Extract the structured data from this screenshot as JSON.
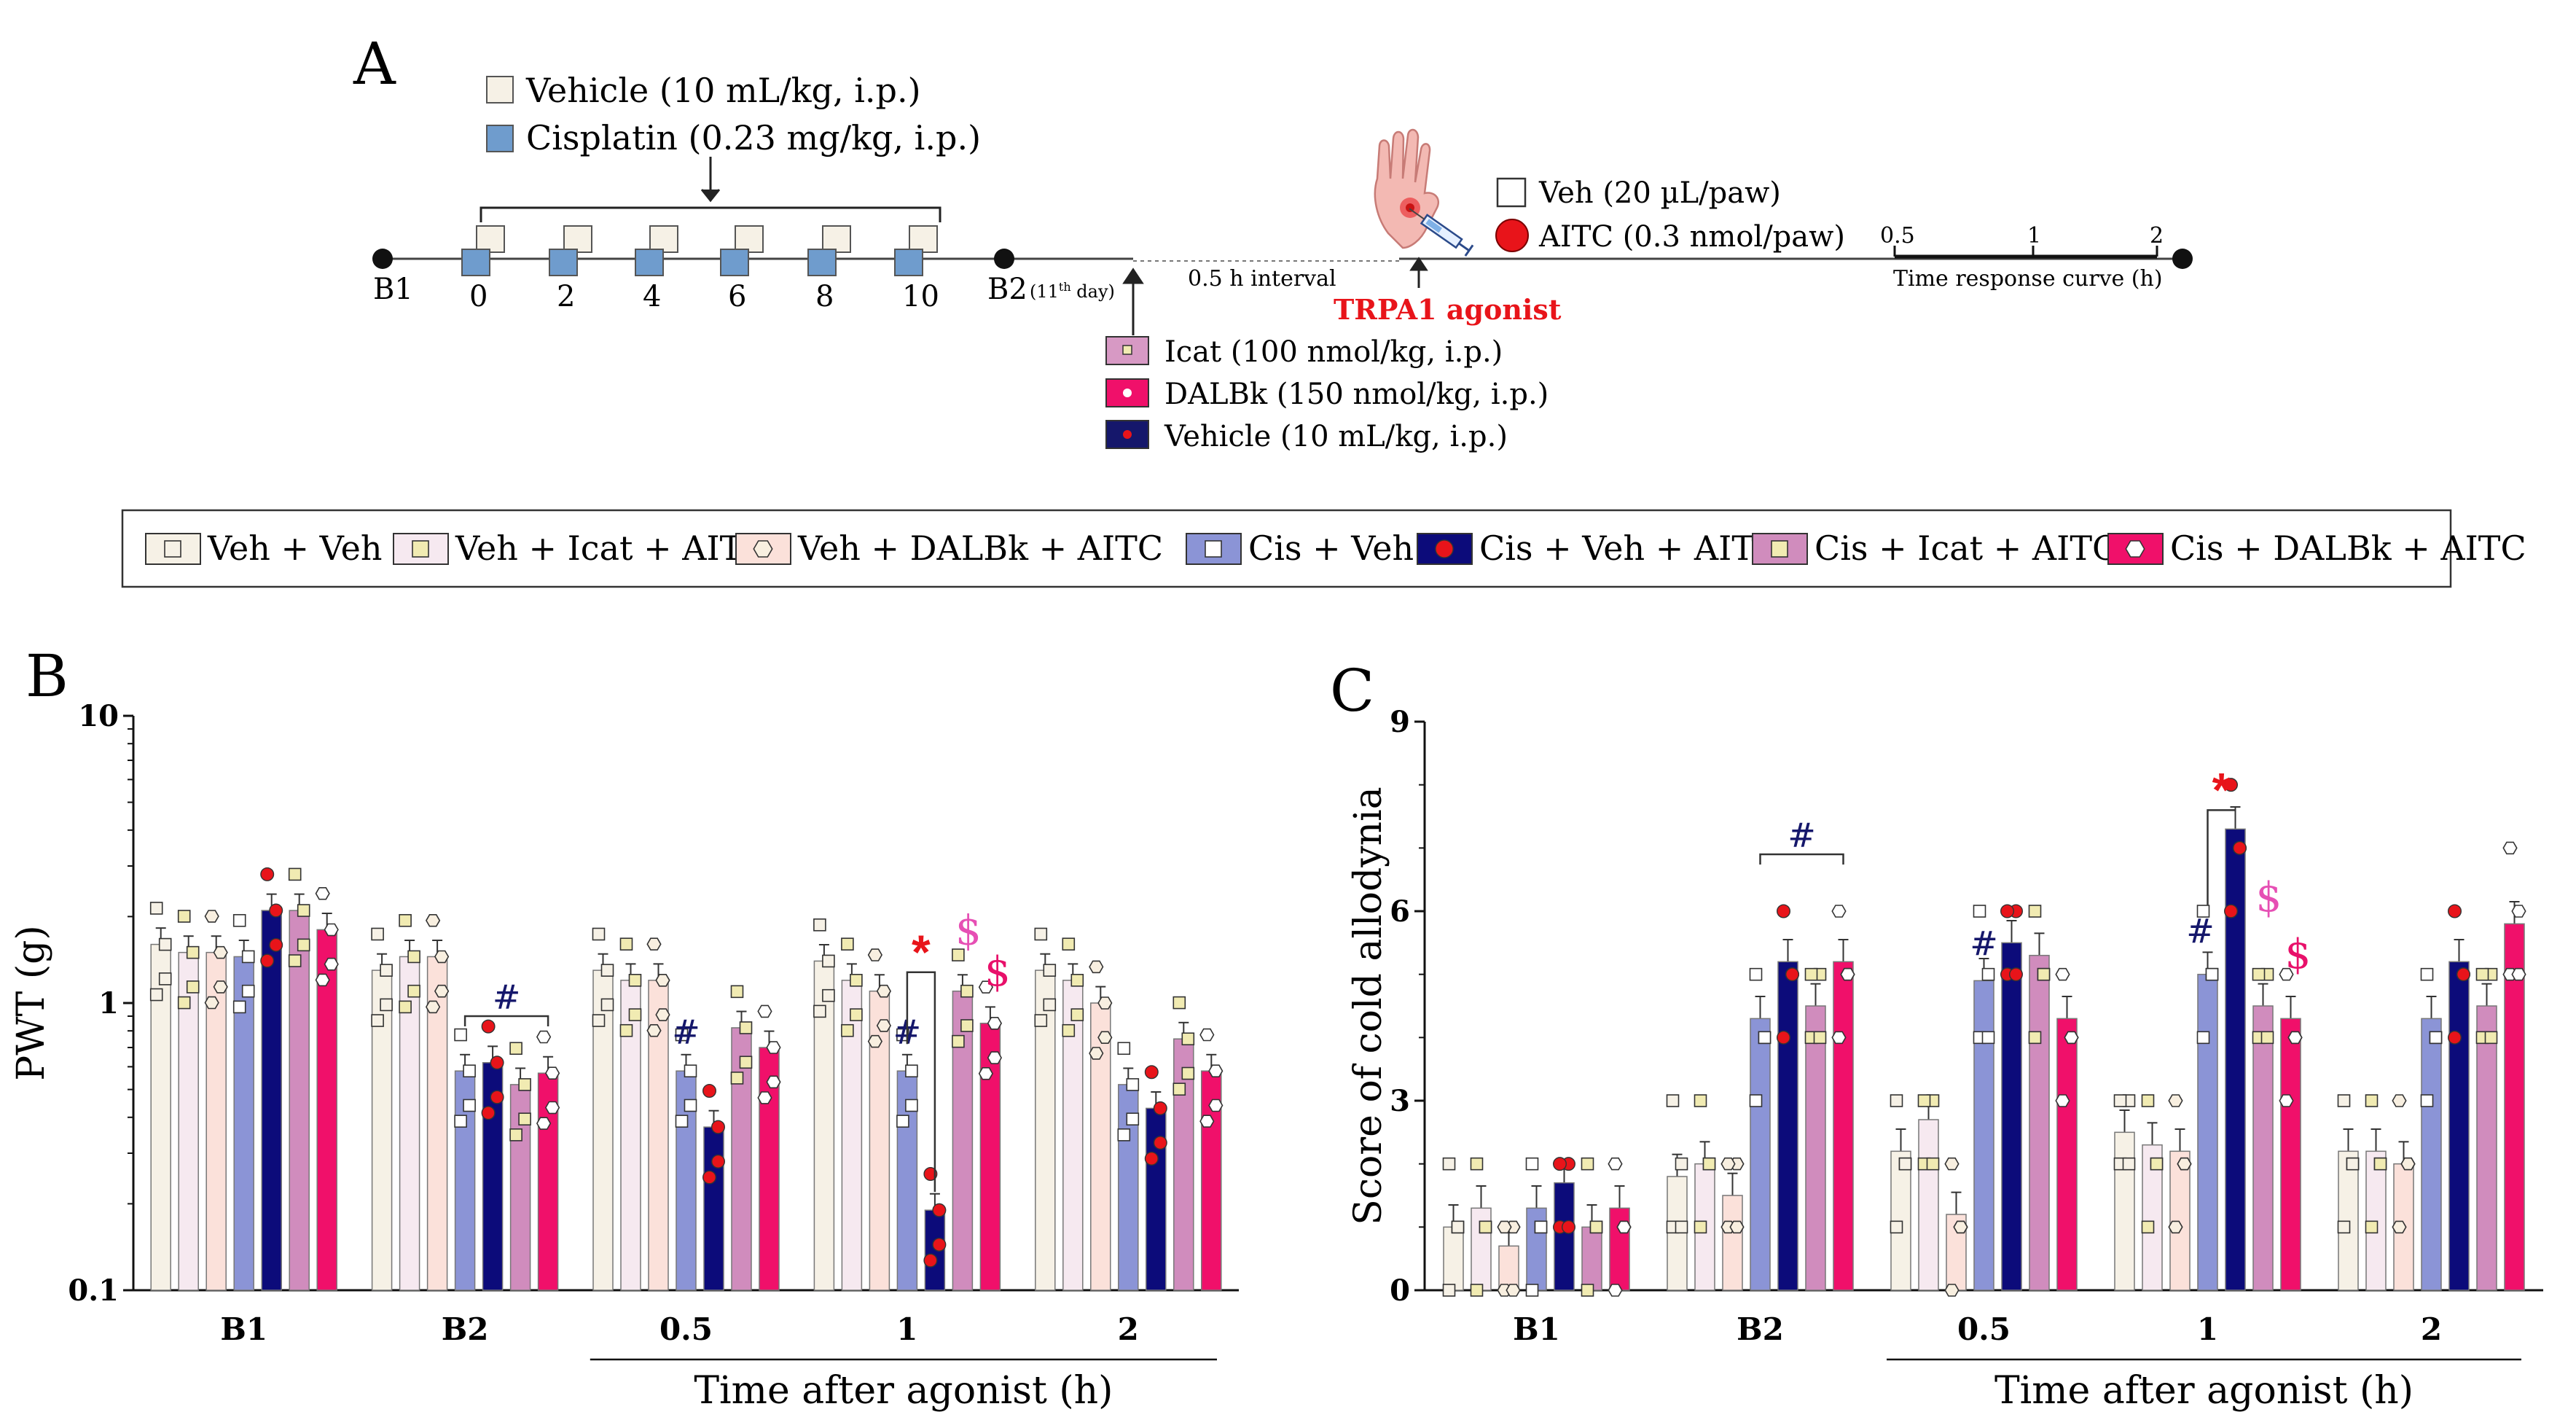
{
  "panel_a": {
    "letter": "A",
    "vehicle_label": "Vehicle (10 mL/kg, i.p.)",
    "cisplatin_label": "Cisplatin (0.23 mg/kg, i.p.)",
    "baseline1": "B1",
    "baseline2": "B2",
    "baseline2_note_prefix": "(11",
    "baseline2_note_sup": "th",
    "baseline2_note_suffix": " day)",
    "days": [
      "0",
      "2",
      "4",
      "6",
      "8",
      "10"
    ],
    "interval_label": "0.5 h interval",
    "agonist_label": "TRPA1 agonist",
    "treatments": [
      "Icat (100 nmol/kg, i.p.)",
      "DALBk (150 nmol/kg, i.p.)",
      "Vehicle (10 mL/kg, i.p.)"
    ],
    "paw_veh_label": "Veh (20 µL/paw)",
    "paw_aitc_label": "AITC (0.3 nmol/paw)",
    "time_ticks": [
      "0.5",
      "1",
      "2"
    ],
    "time_curve_label": "Time response curve (h)",
    "colors": {
      "vehicle": "#f6f1e6",
      "cisplatin": "#6f9ccd",
      "icat": "#d799c4",
      "dalbk": "#f0106a",
      "veh_ip": "#15176b",
      "aitc": "#e8141a",
      "agonist_text": "#e8141a"
    }
  },
  "legend": {
    "items": [
      {
        "label": "Veh + Veh",
        "fill": "#f6f1e6",
        "marker": "square",
        "marker_fill": "#f6f1e6"
      },
      {
        "label": "Veh + Icat + AITC",
        "fill": "#f6e9f0",
        "marker": "square",
        "marker_fill": "#f1ebb2"
      },
      {
        "label": "Veh + DALBk + AITC",
        "fill": "#fbe1da",
        "marker": "hexagon",
        "marker_fill": "#f8efe0"
      },
      {
        "label": "Cis + Veh",
        "fill": "#8b94d6",
        "marker": "square",
        "marker_fill": "#ffffff"
      },
      {
        "label": "Cis + Veh + AITC",
        "fill": "#0c0b7a",
        "marker": "circle",
        "marker_fill": "#e8141a"
      },
      {
        "label": "Cis + Icat + AITC",
        "fill": "#d08cbd",
        "marker": "square",
        "marker_fill": "#f1ebb2"
      },
      {
        "label": "Cis + DALBk + AITC",
        "fill": "#f0106a",
        "marker": "hexagon",
        "marker_fill": "#ffffff"
      }
    ]
  },
  "chart_data": [
    {
      "type": "bar",
      "panel": "B",
      "scale": "log",
      "ylabel": "PWT (g)",
      "ylim": [
        0.1,
        10
      ],
      "yticks": [
        "0.1",
        "1",
        "10"
      ],
      "categories": [
        "B1",
        "B2",
        "0.5",
        "1",
        "2"
      ],
      "xlabel": "Time after agonist (h)",
      "series": [
        {
          "name": "Veh + Veh",
          "values": [
            1.6,
            1.3,
            1.3,
            1.4,
            1.3
          ]
        },
        {
          "name": "Veh + Icat + AITC",
          "values": [
            1.5,
            1.45,
            1.2,
            1.2,
            1.2
          ]
        },
        {
          "name": "Veh + DALBk + AITC",
          "values": [
            1.5,
            1.45,
            1.2,
            1.1,
            1.0
          ]
        },
        {
          "name": "Cis + Veh",
          "values": [
            1.45,
            0.58,
            0.58,
            0.58,
            0.52
          ]
        },
        {
          "name": "Cis + Veh + AITC",
          "values": [
            2.1,
            0.62,
            0.37,
            0.19,
            0.43
          ]
        },
        {
          "name": "Cis + Icat + AITC",
          "values": [
            2.1,
            0.52,
            0.82,
            1.1,
            0.75
          ]
        },
        {
          "name": "Cis + DALBk + AITC",
          "values": [
            1.8,
            0.57,
            0.7,
            0.85,
            0.58
          ]
        }
      ],
      "annotations": [
        {
          "symbol": "#",
          "group": "B2",
          "color": "#15176b"
        },
        {
          "symbol": "#",
          "group": "0.5",
          "color": "#15176b"
        },
        {
          "symbol": "#",
          "group": "1",
          "color": "#15176b"
        },
        {
          "symbol": "*",
          "group": "1",
          "color": "#e8141a"
        },
        {
          "symbol": "$",
          "group": "1",
          "color": "#e64fb4"
        },
        {
          "symbol": "$",
          "group": "1",
          "color": "#e8106a"
        }
      ]
    },
    {
      "type": "bar",
      "panel": "C",
      "scale": "linear",
      "ylabel": "Score of cold allodynia",
      "ylim": [
        0,
        9
      ],
      "yticks": [
        "0",
        "3",
        "6",
        "9"
      ],
      "categories": [
        "B1",
        "B2",
        "0.5",
        "1",
        "2"
      ],
      "xlabel": "Time after agonist (h)",
      "series": [
        {
          "name": "Veh + Veh",
          "values": [
            1.0,
            1.8,
            2.2,
            2.5,
            2.2
          ]
        },
        {
          "name": "Veh + Icat + AITC",
          "values": [
            1.3,
            2.0,
            2.7,
            2.3,
            2.2
          ]
        },
        {
          "name": "Veh + DALBk + AITC",
          "values": [
            0.7,
            1.5,
            1.2,
            2.2,
            2.0
          ]
        },
        {
          "name": "Cis + Veh",
          "values": [
            1.3,
            4.3,
            4.9,
            5.0,
            4.3
          ]
        },
        {
          "name": "Cis + Veh + AITC",
          "values": [
            1.7,
            5.2,
            5.5,
            7.3,
            5.2
          ]
        },
        {
          "name": "Cis + Icat + AITC",
          "values": [
            1.0,
            4.5,
            5.3,
            4.5,
            4.5
          ]
        },
        {
          "name": "Cis + DALBk + AITC",
          "values": [
            1.3,
            5.2,
            4.3,
            4.3,
            5.8
          ]
        }
      ],
      "annotations": [
        {
          "symbol": "#",
          "group": "B2",
          "color": "#15176b"
        },
        {
          "symbol": "#",
          "group": "0.5",
          "color": "#15176b"
        },
        {
          "symbol": "#",
          "group": "1",
          "color": "#15176b"
        },
        {
          "symbol": "*",
          "group": "1",
          "color": "#e8141a"
        },
        {
          "symbol": "$",
          "group": "1",
          "color": "#e64fb4"
        },
        {
          "symbol": "$",
          "group": "1",
          "color": "#e8106a"
        }
      ]
    }
  ]
}
